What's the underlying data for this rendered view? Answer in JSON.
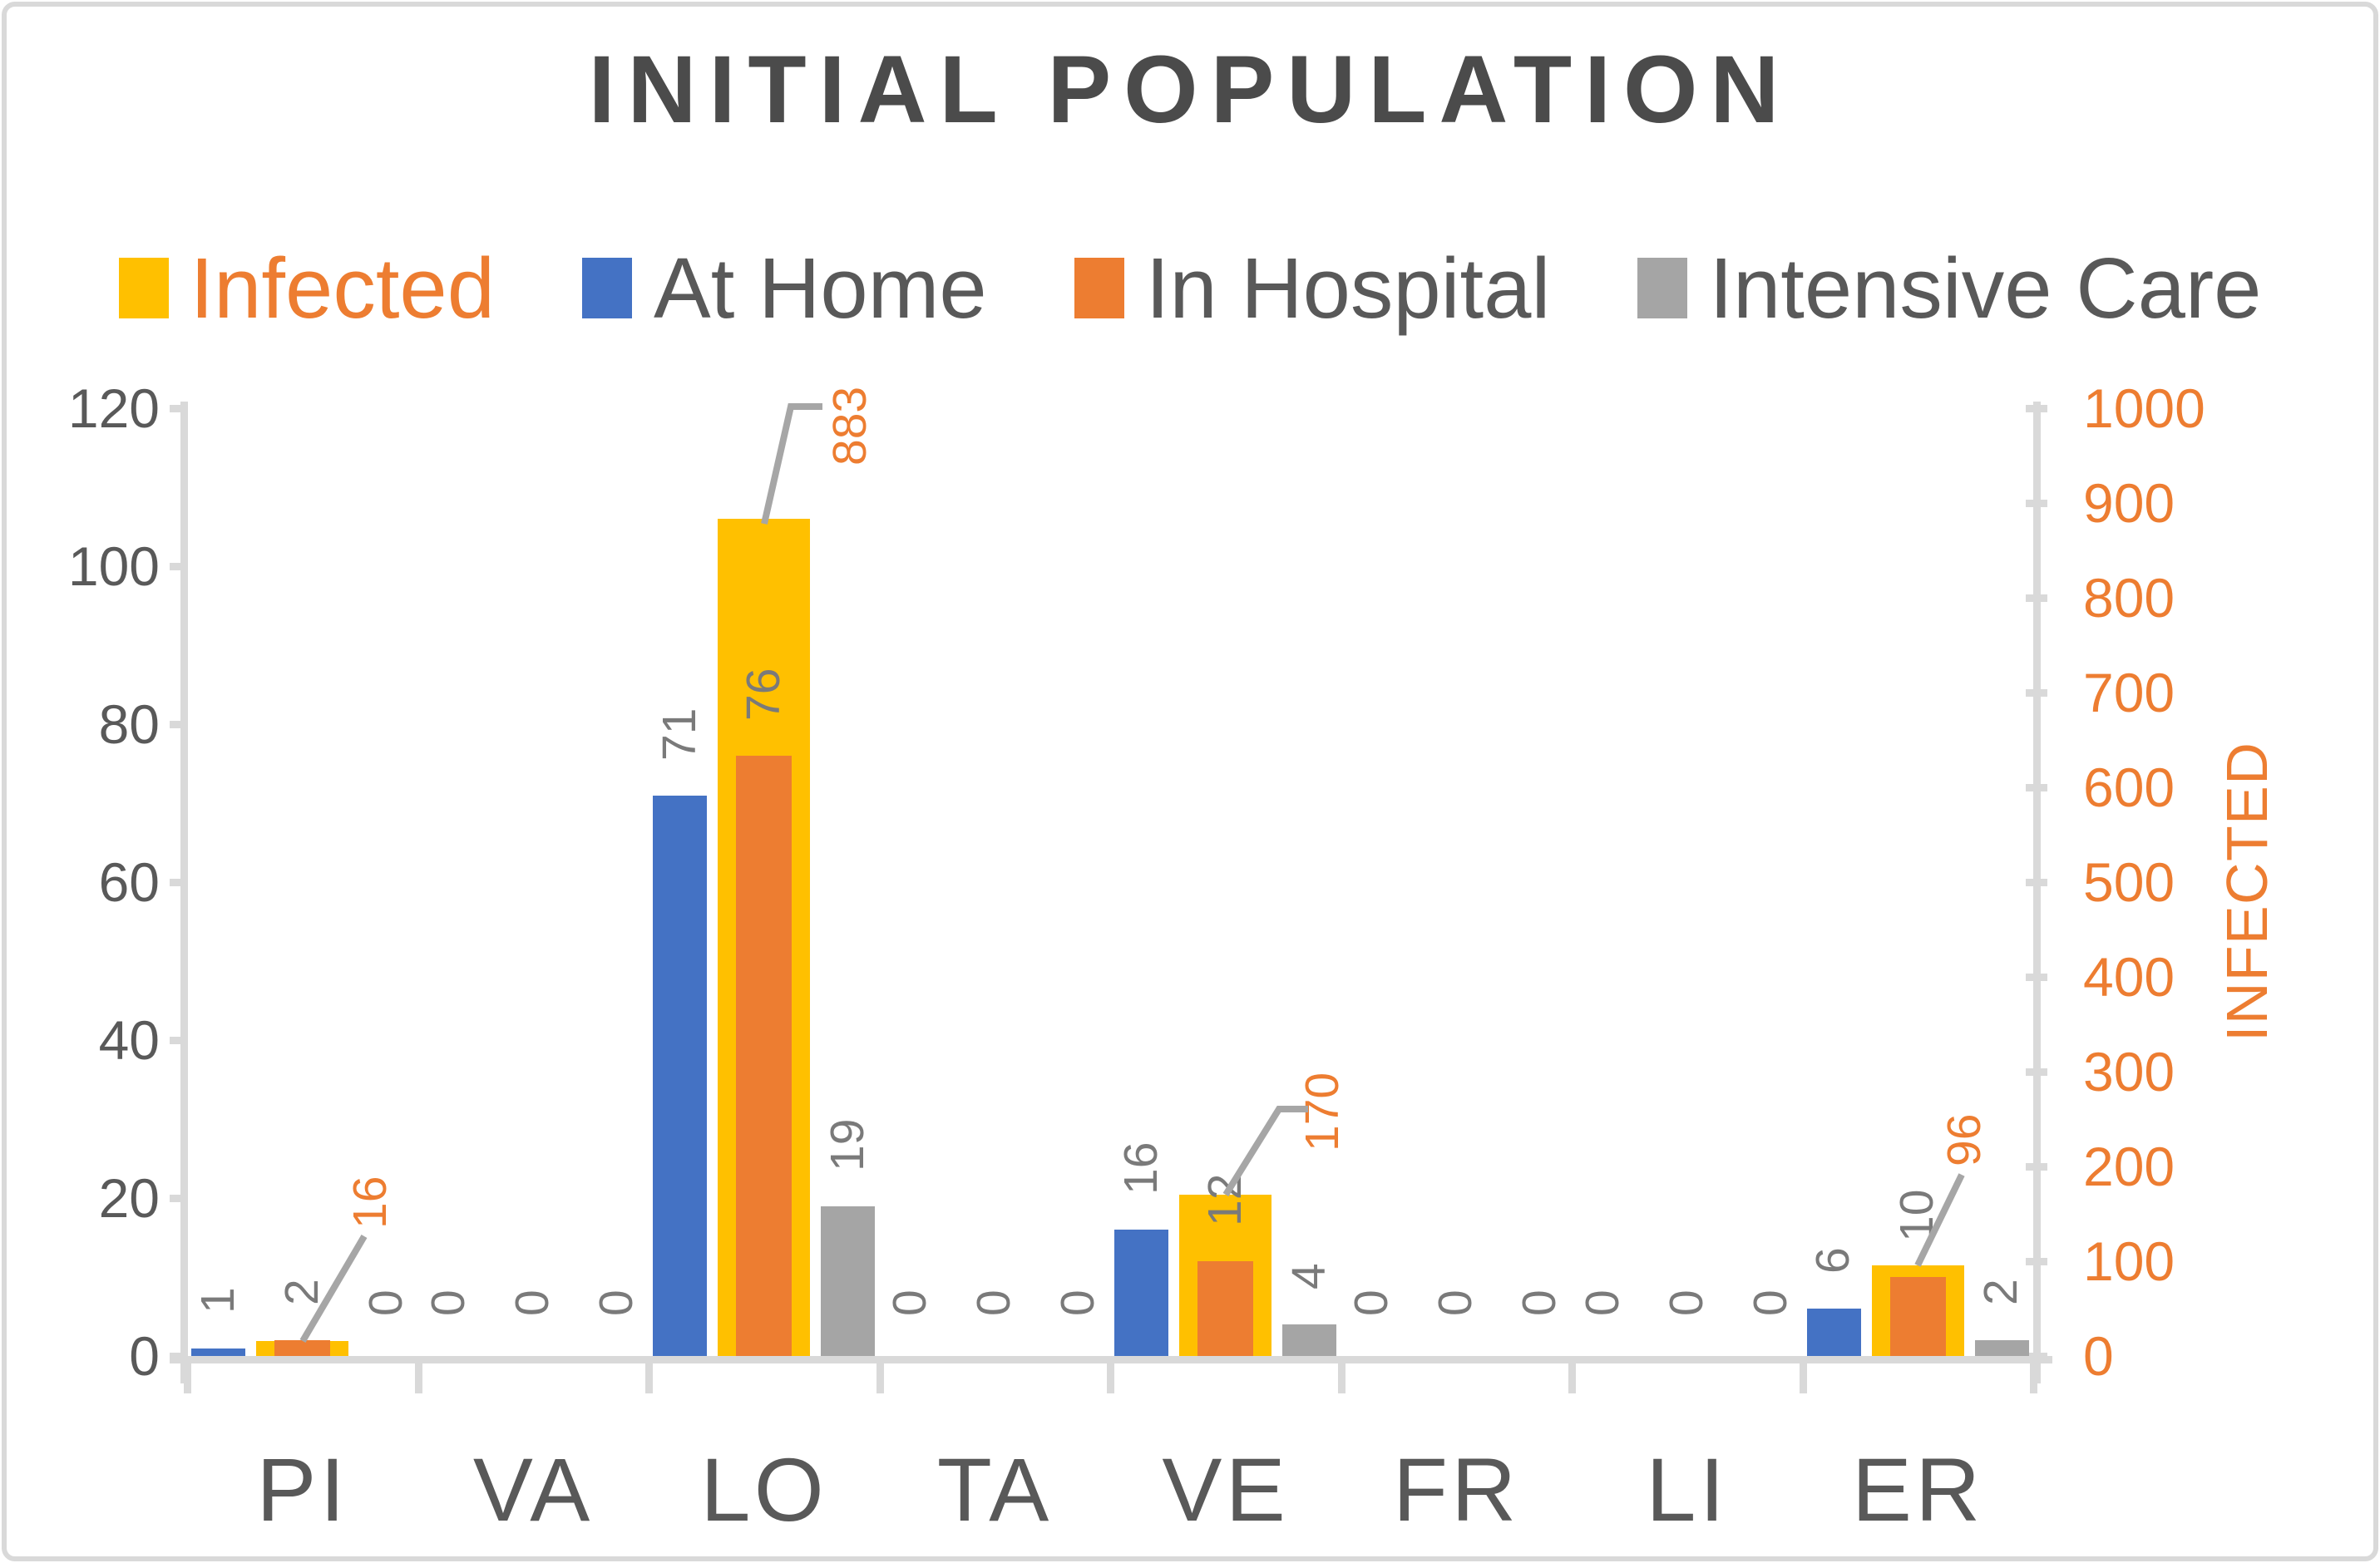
{
  "title": "INITIAL POPULATION",
  "legend": {
    "position": "top",
    "items": [
      {
        "label": "Infected",
        "swatch_color": "#FFC000",
        "text_color": "#ED7D31"
      },
      {
        "label": "At Home",
        "swatch_color": "#4472C4",
        "text_color": "#595959"
      },
      {
        "label": "In Hospital",
        "swatch_color": "#ED7D31",
        "text_color": "#595959"
      },
      {
        "label": "Intensive Care",
        "swatch_color": "#A5A5A5",
        "text_color": "#595959"
      }
    ]
  },
  "colors": {
    "infected_bar": "#FFC000",
    "at_home_bar": "#4472C4",
    "in_hospital_bar": "#ED7D31",
    "intensive_care_bar": "#A5A5A5",
    "axis_line": "#D9D9D9",
    "leader_line": "#A6A6A6",
    "data_label_gray": "#7a7a7a",
    "data_label_orange": "#ED7D31",
    "axis_text_dark": "#595959",
    "axis_text_orange": "#ED7D31",
    "title_text": "#4b4b4b"
  },
  "chart_data": {
    "type": "bar",
    "title": "INITIAL POPULATION",
    "categories": [
      "PI",
      "VA",
      "LO",
      "TA",
      "VE",
      "FR",
      "LI",
      "ER"
    ],
    "series": [
      {
        "name": "Infected",
        "axis": "secondary",
        "color": "#FFC000",
        "label_color": "#ED7D31",
        "values": [
          16,
          0,
          883,
          0,
          170,
          0,
          0,
          96
        ]
      },
      {
        "name": "At Home",
        "axis": "primary",
        "color": "#4472C4",
        "label_color": "#7a7a7a",
        "values": [
          1,
          0,
          71,
          0,
          16,
          0,
          0,
          6
        ]
      },
      {
        "name": "In Hospital",
        "axis": "primary",
        "color": "#ED7D31",
        "label_color": "#7a7a7a",
        "values": [
          2,
          0,
          76,
          0,
          12,
          0,
          0,
          10
        ]
      },
      {
        "name": "Intensive Care",
        "axis": "primary",
        "color": "#A5A5A5",
        "label_color": "#7a7a7a",
        "values": [
          0,
          0,
          19,
          0,
          4,
          0,
          0,
          2
        ]
      }
    ],
    "primary_axis": {
      "min": 0,
      "max": 120,
      "step": 20,
      "tick_labels": [
        "0",
        "20",
        "40",
        "60",
        "80",
        "100",
        "120"
      ]
    },
    "secondary_axis": {
      "min": 0,
      "max": 1000,
      "step": 100,
      "title": "INFECTED",
      "tick_labels": [
        "0",
        "100",
        "200",
        "300",
        "400",
        "500",
        "600",
        "700",
        "800",
        "900",
        "1000"
      ]
    },
    "gridlines": false,
    "legend_position": "top",
    "data_labels": "rotated-90-outside-end",
    "callout_values": [
      16,
      883,
      170,
      96
    ]
  }
}
